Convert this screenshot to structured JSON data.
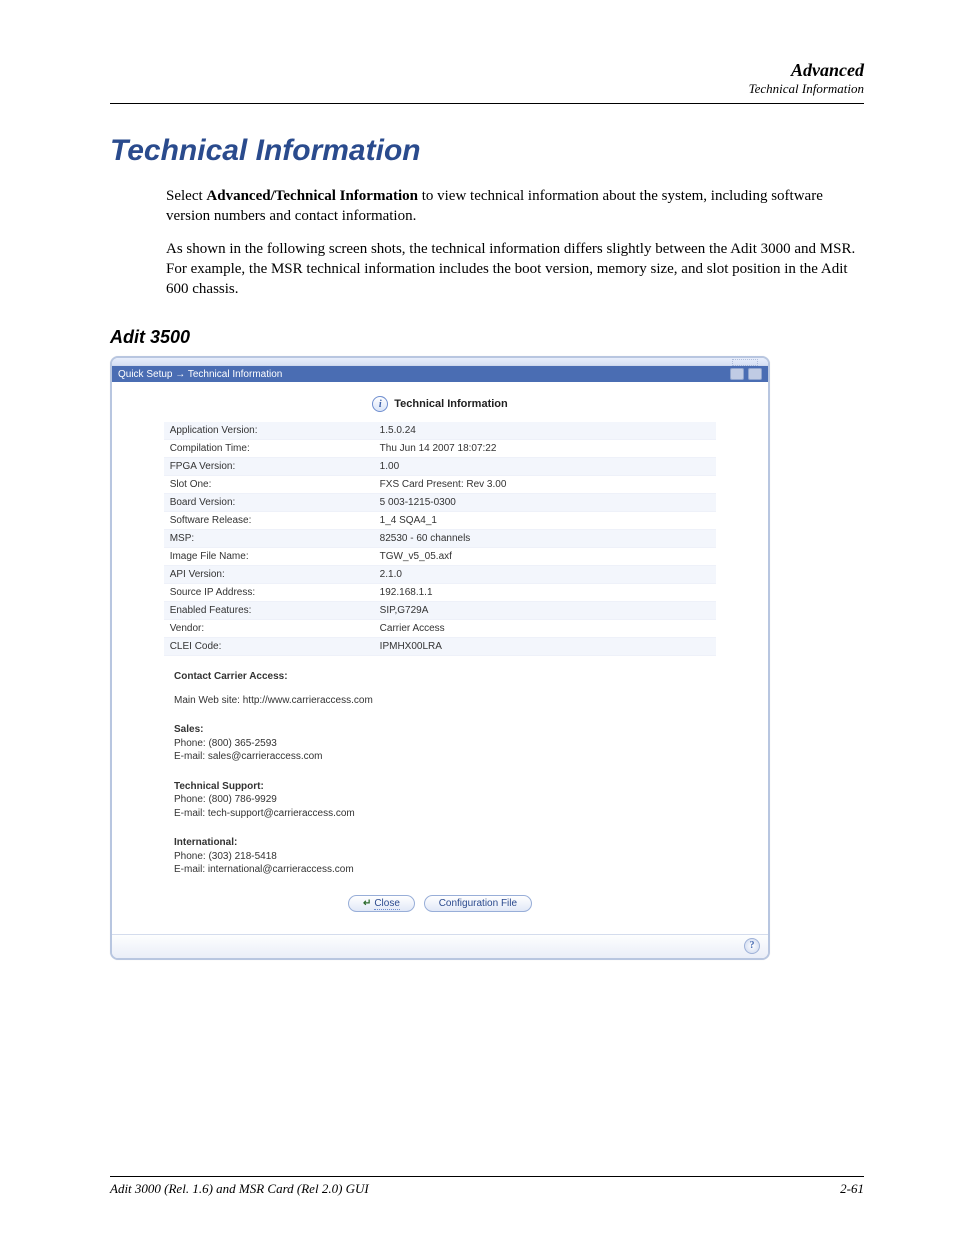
{
  "header": {
    "title": "Advanced",
    "subtitle": "Technical Information"
  },
  "main": {
    "heading": "Technical Information",
    "para1_prefix": "Select ",
    "para1_bold": "Advanced/Technical Information",
    "para1_suffix": " to view technical information about the system, including software version numbers and contact information.",
    "para2": "As shown in the following screen shots, the technical information differs slightly between the Adit 3000 and MSR.  For example, the MSR technical information includes the boot version, memory size, and slot position in the Adit 600 chassis.",
    "subheading": "Adit 3500"
  },
  "screenshot": {
    "breadcrumb": "Quick Setup → Technical Information",
    "panel_title": "Technical Information",
    "rows": [
      {
        "label": "Application Version:",
        "value": "1.5.0.24"
      },
      {
        "label": "Compilation Time:",
        "value": "Thu Jun 14 2007 18:07:22"
      },
      {
        "label": "FPGA Version:",
        "value": "1.00"
      },
      {
        "label": "Slot One:",
        "value": "FXS Card Present: Rev 3.00"
      },
      {
        "label": "Board Version:",
        "value": "5 003-1215-0300"
      },
      {
        "label": "Software Release:",
        "value": "1_4 SQA4_1"
      },
      {
        "label": "MSP:",
        "value": "82530 - 60 channels"
      },
      {
        "label": "Image File Name:",
        "value": "TGW_v5_05.axf"
      },
      {
        "label": "API Version:",
        "value": "2.1.0"
      },
      {
        "label": "Source IP Address:",
        "value": "192.168.1.1"
      },
      {
        "label": "Enabled Features:",
        "value": "SIP,G729A"
      },
      {
        "label": "Vendor:",
        "value": "Carrier Access"
      },
      {
        "label": "CLEI Code:",
        "value": "IPMHX00LRA"
      }
    ],
    "contact": {
      "heading": "Contact Carrier Access:",
      "website_label": "Main Web site:",
      "website_value": "http://www.carrieraccess.com",
      "sales_head": "Sales:",
      "sales_phone": "Phone: (800) 365-2593",
      "sales_email": "E-mail: sales@carrieraccess.com",
      "tech_head": "Technical Support:",
      "tech_phone": "Phone: (800) 786-9929",
      "tech_email": "E-mail: tech-support@carrieraccess.com",
      "intl_head": "International:",
      "intl_phone": "Phone: (303) 218-5418",
      "intl_email": "E-mail: international@carrieraccess.com"
    },
    "buttons": {
      "close": "Close",
      "config": "Configuration File"
    },
    "help_icon": "?"
  },
  "footer": {
    "left": "Adit 3000 (Rel. 1.6) and MSR Card (Rel 2.0) GUI",
    "right": "2-61"
  }
}
